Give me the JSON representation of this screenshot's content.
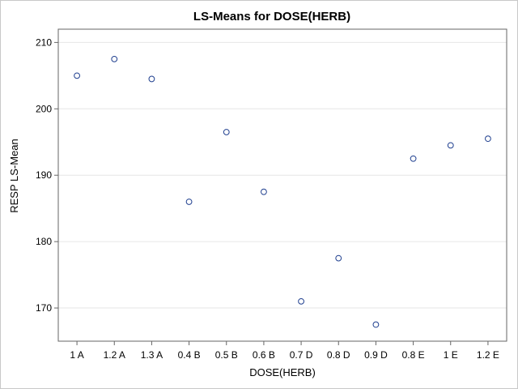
{
  "chart_data": {
    "type": "scatter",
    "title": "LS-Means for DOSE(HERB)",
    "xlabel": "DOSE(HERB)",
    "ylabel": "RESP LS-Mean",
    "categories": [
      "1 A",
      "1.2 A",
      "1.3 A",
      "0.4 B",
      "0.5 B",
      "0.6 B",
      "0.7 D",
      "0.8 D",
      "0.9 D",
      "0.8 E",
      "1 E",
      "1.2 E"
    ],
    "values": [
      205.0,
      207.5,
      204.5,
      186.0,
      196.5,
      187.5,
      171.0,
      177.5,
      167.5,
      192.5,
      194.5,
      195.5
    ],
    "ylim": [
      165,
      212
    ],
    "yticks": [
      170,
      180,
      190,
      200,
      210
    ],
    "grid": true,
    "marker_color": "#1f3f8f",
    "grid_color": "#e6e6e6"
  }
}
